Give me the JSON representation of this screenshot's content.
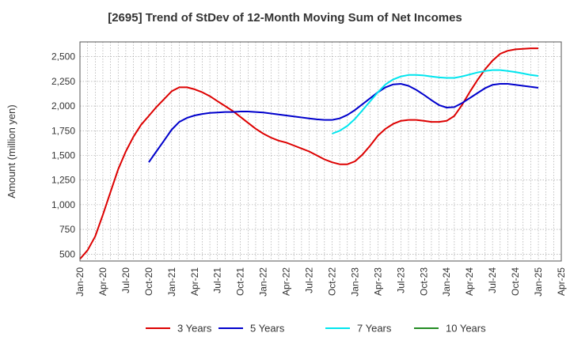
{
  "chart_data": {
    "type": "line",
    "title": "[2695]  Trend of StDev of 12-Month Moving Sum of Net Incomes",
    "xlabel": "",
    "ylabel": "Amount (million yen)",
    "ylim": [
      430,
      2650
    ],
    "yticks": [
      500,
      750,
      1000,
      1250,
      1500,
      1750,
      2000,
      2250,
      2500
    ],
    "ytick_labels": [
      "500",
      "750",
      "1,000",
      "1,250",
      "1,500",
      "1,750",
      "2,000",
      "2,250",
      "2,500"
    ],
    "xlim": [
      "2020-01",
      "2025-04"
    ],
    "xtick_labels": [
      "Jan-20",
      "Apr-20",
      "Jul-20",
      "Oct-20",
      "Jan-21",
      "Apr-21",
      "Jul-21",
      "Oct-21",
      "Jan-22",
      "Apr-22",
      "Jul-22",
      "Oct-22",
      "Jan-23",
      "Apr-23",
      "Jul-23",
      "Oct-23",
      "Jan-24",
      "Apr-24",
      "Jul-24",
      "Oct-24",
      "Jan-25",
      "Apr-25"
    ],
    "grid": true,
    "legend_position": "bottom",
    "series": [
      {
        "name": "3 Years",
        "color": "#dd0000",
        "points": [
          [
            "2020-01",
            450
          ],
          [
            "2020-02",
            540
          ],
          [
            "2020-03",
            680
          ],
          [
            "2020-04",
            900
          ],
          [
            "2020-05",
            1130
          ],
          [
            "2020-06",
            1360
          ],
          [
            "2020-07",
            1540
          ],
          [
            "2020-08",
            1690
          ],
          [
            "2020-09",
            1810
          ],
          [
            "2020-10",
            1900
          ],
          [
            "2020-11",
            1990
          ],
          [
            "2020-12",
            2070
          ],
          [
            "2021-01",
            2150
          ],
          [
            "2021-02",
            2190
          ],
          [
            "2021-03",
            2190
          ],
          [
            "2021-04",
            2170
          ],
          [
            "2021-05",
            2140
          ],
          [
            "2021-06",
            2100
          ],
          [
            "2021-07",
            2050
          ],
          [
            "2021-08",
            2000
          ],
          [
            "2021-09",
            1950
          ],
          [
            "2021-10",
            1890
          ],
          [
            "2021-11",
            1830
          ],
          [
            "2021-12",
            1770
          ],
          [
            "2022-01",
            1720
          ],
          [
            "2022-02",
            1680
          ],
          [
            "2022-03",
            1650
          ],
          [
            "2022-04",
            1630
          ],
          [
            "2022-05",
            1600
          ],
          [
            "2022-06",
            1570
          ],
          [
            "2022-07",
            1540
          ],
          [
            "2022-08",
            1500
          ],
          [
            "2022-09",
            1460
          ],
          [
            "2022-10",
            1430
          ],
          [
            "2022-11",
            1410
          ],
          [
            "2022-12",
            1410
          ],
          [
            "2023-01",
            1440
          ],
          [
            "2023-02",
            1510
          ],
          [
            "2023-03",
            1600
          ],
          [
            "2023-04",
            1700
          ],
          [
            "2023-05",
            1770
          ],
          [
            "2023-06",
            1820
          ],
          [
            "2023-07",
            1850
          ],
          [
            "2023-08",
            1860
          ],
          [
            "2023-09",
            1860
          ],
          [
            "2023-10",
            1850
          ],
          [
            "2023-11",
            1840
          ],
          [
            "2023-12",
            1840
          ],
          [
            "2024-01",
            1850
          ],
          [
            "2024-02",
            1900
          ],
          [
            "2024-03",
            2010
          ],
          [
            "2024-04",
            2140
          ],
          [
            "2024-05",
            2260
          ],
          [
            "2024-06",
            2370
          ],
          [
            "2024-07",
            2460
          ],
          [
            "2024-08",
            2530
          ],
          [
            "2024-09",
            2560
          ],
          [
            "2024-10",
            2575
          ],
          [
            "2024-11",
            2580
          ],
          [
            "2024-12",
            2585
          ],
          [
            "2025-01",
            2585
          ]
        ]
      },
      {
        "name": "5 Years",
        "color": "#0000cc",
        "points": [
          [
            "2020-10",
            1430
          ],
          [
            "2020-11",
            1540
          ],
          [
            "2020-12",
            1650
          ],
          [
            "2021-01",
            1760
          ],
          [
            "2021-02",
            1840
          ],
          [
            "2021-03",
            1880
          ],
          [
            "2021-04",
            1905
          ],
          [
            "2021-05",
            1920
          ],
          [
            "2021-06",
            1930
          ],
          [
            "2021-07",
            1935
          ],
          [
            "2021-08",
            1940
          ],
          [
            "2021-09",
            1940
          ],
          [
            "2021-10",
            1945
          ],
          [
            "2021-11",
            1945
          ],
          [
            "2021-12",
            1940
          ],
          [
            "2022-01",
            1935
          ],
          [
            "2022-02",
            1925
          ],
          [
            "2022-03",
            1915
          ],
          [
            "2022-04",
            1905
          ],
          [
            "2022-05",
            1895
          ],
          [
            "2022-06",
            1885
          ],
          [
            "2022-07",
            1875
          ],
          [
            "2022-08",
            1865
          ],
          [
            "2022-09",
            1860
          ],
          [
            "2022-10",
            1860
          ],
          [
            "2022-11",
            1875
          ],
          [
            "2022-12",
            1910
          ],
          [
            "2023-01",
            1960
          ],
          [
            "2023-02",
            2020
          ],
          [
            "2023-03",
            2080
          ],
          [
            "2023-04",
            2140
          ],
          [
            "2023-05",
            2190
          ],
          [
            "2023-06",
            2220
          ],
          [
            "2023-07",
            2225
          ],
          [
            "2023-08",
            2205
          ],
          [
            "2023-09",
            2165
          ],
          [
            "2023-10",
            2115
          ],
          [
            "2023-11",
            2060
          ],
          [
            "2023-12",
            2010
          ],
          [
            "2024-01",
            1985
          ],
          [
            "2024-02",
            1990
          ],
          [
            "2024-03",
            2030
          ],
          [
            "2024-04",
            2080
          ],
          [
            "2024-05",
            2130
          ],
          [
            "2024-06",
            2180
          ],
          [
            "2024-07",
            2215
          ],
          [
            "2024-08",
            2225
          ],
          [
            "2024-09",
            2225
          ],
          [
            "2024-10",
            2215
          ],
          [
            "2024-11",
            2205
          ],
          [
            "2024-12",
            2195
          ],
          [
            "2025-01",
            2185
          ]
        ]
      },
      {
        "name": "7 Years",
        "color": "#00e5ee",
        "points": [
          [
            "2022-10",
            1720
          ],
          [
            "2022-11",
            1750
          ],
          [
            "2022-12",
            1800
          ],
          [
            "2023-01",
            1870
          ],
          [
            "2023-02",
            1960
          ],
          [
            "2023-03",
            2050
          ],
          [
            "2023-04",
            2140
          ],
          [
            "2023-05",
            2220
          ],
          [
            "2023-06",
            2270
          ],
          [
            "2023-07",
            2300
          ],
          [
            "2023-08",
            2315
          ],
          [
            "2023-09",
            2315
          ],
          [
            "2023-10",
            2310
          ],
          [
            "2023-11",
            2300
          ],
          [
            "2023-12",
            2290
          ],
          [
            "2024-01",
            2285
          ],
          [
            "2024-02",
            2285
          ],
          [
            "2024-03",
            2300
          ],
          [
            "2024-04",
            2320
          ],
          [
            "2024-05",
            2340
          ],
          [
            "2024-06",
            2355
          ],
          [
            "2024-07",
            2365
          ],
          [
            "2024-08",
            2365
          ],
          [
            "2024-09",
            2355
          ],
          [
            "2024-10",
            2345
          ],
          [
            "2024-11",
            2330
          ],
          [
            "2024-12",
            2315
          ],
          [
            "2025-01",
            2305
          ]
        ]
      },
      {
        "name": "10 Years",
        "color": "#228b22",
        "points": []
      }
    ]
  }
}
